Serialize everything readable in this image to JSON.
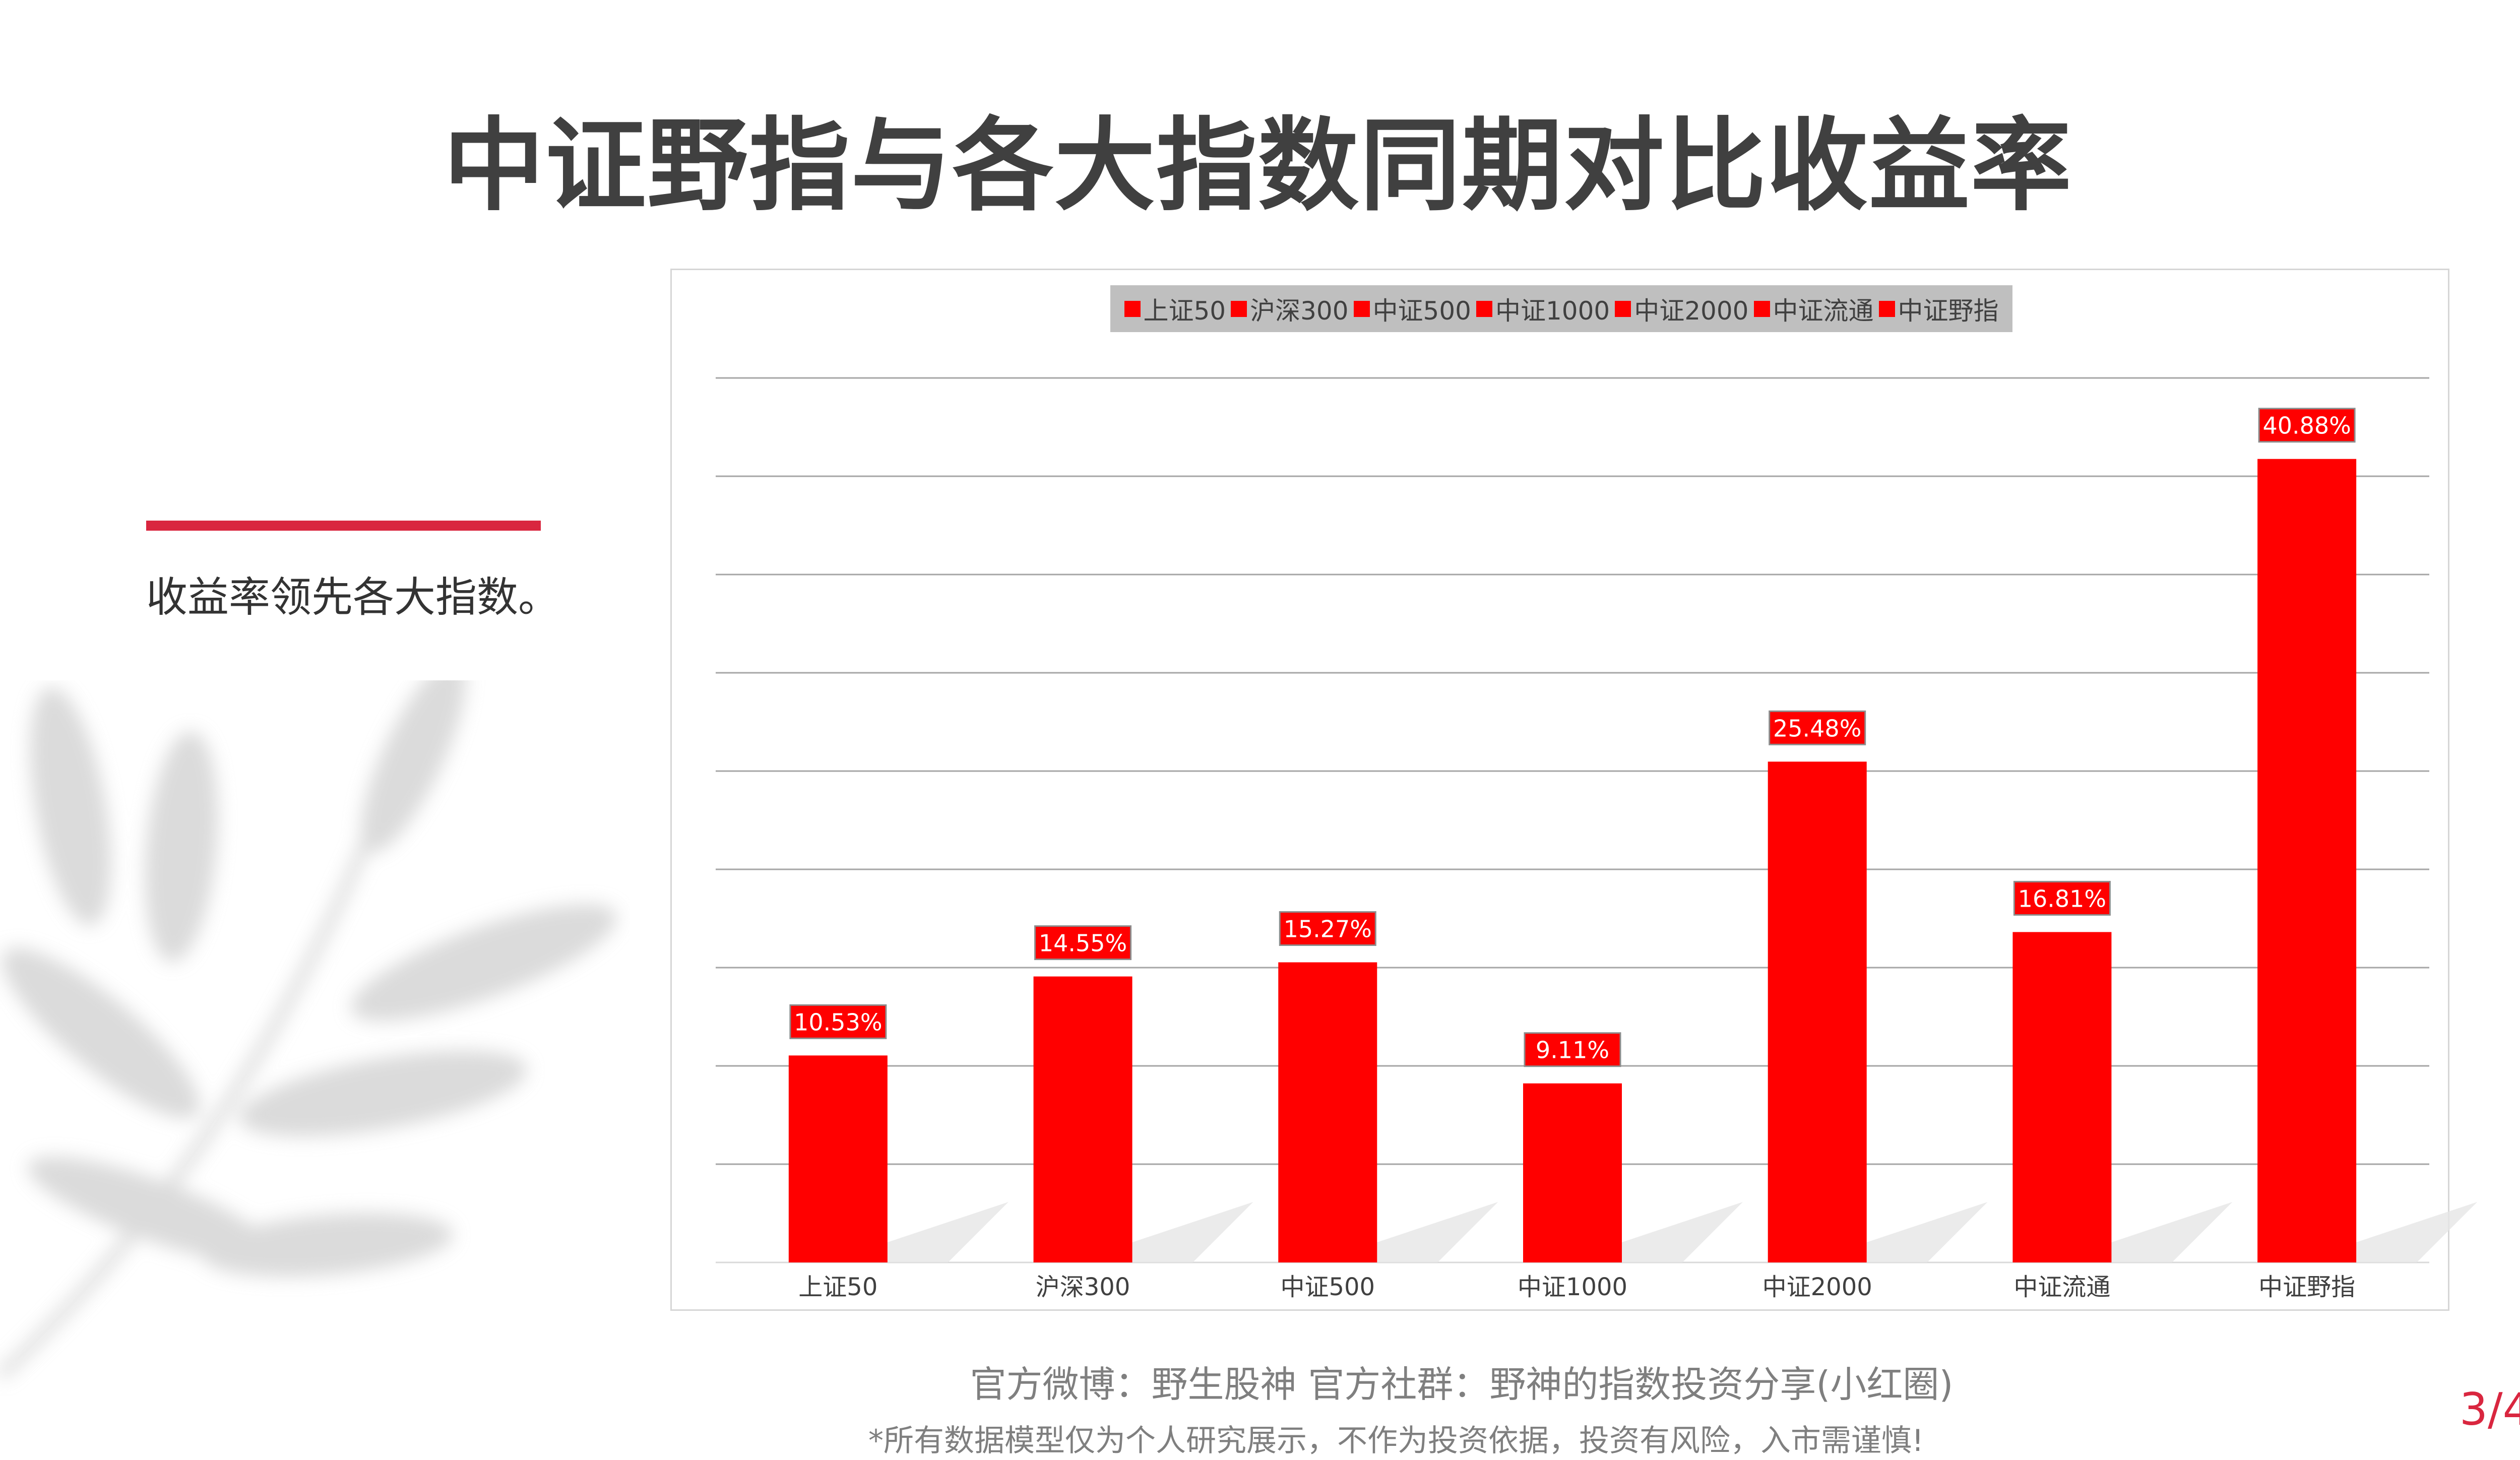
{
  "title": "中证野指与各大指数同期对比收益率",
  "sidebar": {
    "text": "收益率领先各大指数。"
  },
  "colors": {
    "bar": "#ff0000",
    "accent": "#d9263f",
    "title": "#404040"
  },
  "chart_data": {
    "type": "bar",
    "categories": [
      "上证50",
      "沪深300",
      "中证500",
      "中证1000",
      "中证2000",
      "中证流通",
      "中证野指"
    ],
    "values": [
      10.53,
      14.55,
      15.27,
      9.11,
      25.48,
      16.81,
      40.88
    ],
    "data_labels": [
      "10.53%",
      "14.55%",
      "15.27%",
      "9.11%",
      "25.48%",
      "16.81%",
      "40.88%"
    ],
    "legend": [
      "上证50",
      "沪深300",
      "中证500",
      "中证1000",
      "中证2000",
      "中证流通",
      "中证野指"
    ],
    "legend_position": "top",
    "grid": true,
    "ylim": [
      0,
      45
    ],
    "y_tick_step": 5,
    "title": "",
    "xlabel": "",
    "ylabel": ""
  },
  "footer": {
    "line1": "官方微博：野生股神  官方社群：野神的指数投资分享(小红圈)",
    "line2": "*所有数据模型仅为个人研究展示，不作为投资依据，投资有风险，入市需谨慎!",
    "page": "3/4"
  }
}
